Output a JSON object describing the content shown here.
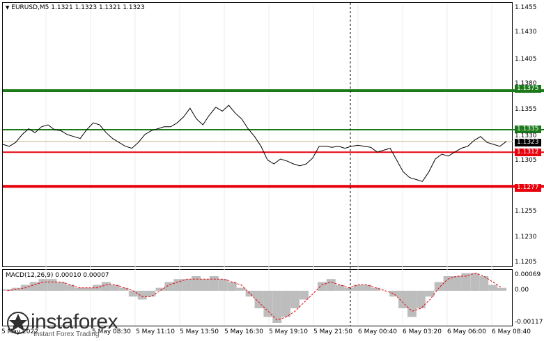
{
  "chart_header": {
    "symbol": "EURUSD,M5",
    "ohlc": "1.1321 1.1323 1.1321 1.1323"
  },
  "macd_header": {
    "label": "MACD(12,26,9)",
    "values": "0.00010 0.00007"
  },
  "price_axis": {
    "ticks": [
      "1.1455",
      "1.1430",
      "1.1405",
      "1.1380",
      "1.1355",
      "1.1330",
      "1.1305",
      "1.1280",
      "1.1255",
      "1.1230",
      "1.1205"
    ]
  },
  "macd_axis": {
    "ticks": [
      "0.00069",
      "0.00",
      "-0.00117"
    ]
  },
  "level_labels": {
    "l1375": "1.1375",
    "l1335": "1.1335",
    "l1323": "1.1323",
    "l1312": "1.1312",
    "l1277": "1.1277"
  },
  "time_axis": {
    "labels": [
      "5 May 2022",
      "5 May 08:30",
      "5 May 11:10",
      "5 May 13:50",
      "5 May 16:30",
      "5 May 19:10",
      "5 May 21:50",
      "6 May 00:40",
      "6 May 03:20",
      "6 May 06:00",
      "6 May 08:40"
    ]
  },
  "logo": {
    "name": "instaforex",
    "tagline": "Instant Forex Trading"
  },
  "colors": {
    "green_level": "#1a7a1a",
    "red_level": "#e8000b",
    "price_line": "#000000",
    "macd_hist": "#bdbdbd",
    "macd_signal": "#e8000b"
  },
  "chart_data": {
    "type": "line",
    "title": "EURUSD,M5",
    "ylim": [
      1.1195,
      1.1465
    ],
    "horizontal_levels": [
      {
        "value": 1.1375,
        "color": "green"
      },
      {
        "value": 1.1335,
        "color": "green"
      },
      {
        "value": 1.1312,
        "color": "red"
      },
      {
        "value": 1.1277,
        "color": "red"
      }
    ],
    "price_series": [
      1.132,
      1.1318,
      1.1322,
      1.133,
      1.1336,
      1.1332,
      1.1338,
      1.134,
      1.1335,
      1.1334,
      1.133,
      1.1328,
      1.1326,
      1.1335,
      1.1342,
      1.134,
      1.1332,
      1.1326,
      1.1322,
      1.1318,
      1.1316,
      1.1322,
      1.133,
      1.1334,
      1.1336,
      1.1338,
      1.1338,
      1.1342,
      1.1348,
      1.1357,
      1.1346,
      1.134,
      1.135,
      1.1358,
      1.1354,
      1.136,
      1.1352,
      1.1346,
      1.1336,
      1.1328,
      1.1318,
      1.1304,
      1.13,
      1.1305,
      1.1303,
      1.13,
      1.1298,
      1.13,
      1.1306,
      1.1318,
      1.1318,
      1.1317,
      1.1318,
      1.1316,
      1.1318,
      1.1319,
      1.1318,
      1.1317,
      1.1312,
      1.1314,
      1.1316,
      1.1304,
      1.1292,
      1.1286,
      1.1284,
      1.1282,
      1.1292,
      1.1305,
      1.131,
      1.1308,
      1.1312,
      1.1316,
      1.1318,
      1.1324,
      1.1328,
      1.1322,
      1.132,
      1.1318,
      1.1323
    ],
    "macd_hist": [
      5e-05,
      0.0001,
      0.0002,
      0.0003,
      0.0004,
      0.0004,
      0.0003,
      0.0002,
      0.0001,
      0.0001,
      0.0002,
      0.0003,
      0.0002,
      0.0001,
      -0.0002,
      -0.0003,
      -0.0002,
      0.0001,
      0.0003,
      0.0004,
      0.0004,
      0.0005,
      0.0004,
      0.0005,
      0.0004,
      0.0003,
      0.0001,
      -0.0002,
      -0.0006,
      -0.0009,
      -0.0011,
      -0.0009,
      -0.0006,
      -0.0003,
      0.0,
      0.0003,
      0.0004,
      0.0002,
      0.0001,
      0.0002,
      0.0002,
      0.0001,
      0.0,
      -0.0002,
      -0.0006,
      -0.0009,
      -0.0006,
      -0.0002,
      0.0003,
      0.0005,
      0.0005,
      0.0006,
      0.0006,
      0.0005,
      0.0002,
      0.0001
    ],
    "macd_signal": [
      0.0,
      5e-05,
      0.0001,
      0.0002,
      0.0003,
      0.0003,
      0.0003,
      0.0002,
      0.0001,
      0.0001,
      0.0001,
      0.0002,
      0.0002,
      0.0001,
      -0.0,
      -0.0002,
      -0.0002,
      -0.0,
      0.0002,
      0.0003,
      0.0004,
      0.0004,
      0.0004,
      0.0004,
      0.0004,
      0.0003,
      0.0002,
      -0.0001,
      -0.0004,
      -0.0007,
      -0.001,
      -0.0009,
      -0.0007,
      -0.0004,
      -0.0001,
      0.0002,
      0.0003,
      0.0002,
      0.0001,
      0.0002,
      0.0002,
      0.0001,
      0.0,
      -0.0001,
      -0.0004,
      -0.0007,
      -0.0006,
      -0.0003,
      0.0001,
      0.0004,
      0.0005,
      0.0005,
      0.0006,
      0.0005,
      0.0003,
      0.0001
    ],
    "macd_ylim": [
      -0.00117,
      0.00069
    ]
  }
}
